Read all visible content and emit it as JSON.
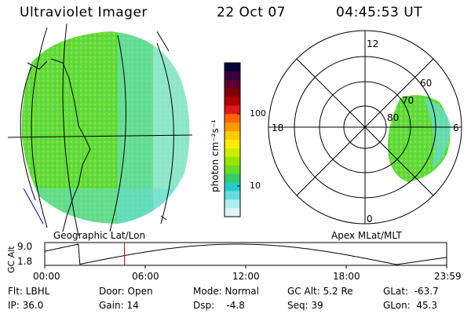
{
  "header": {
    "instrument": "Ultraviolet Imager",
    "date": "22 Oct 07",
    "time": "04:45:53 UT"
  },
  "colorbar": {
    "unit_label": "photon cm⁻²s⁻¹",
    "ticks": [
      "100",
      "10"
    ],
    "colors": [
      "#000033",
      "#3a0040",
      "#5a0030",
      "#800000",
      "#b00000",
      "#e01818",
      "#ff6600",
      "#ff9900",
      "#ffcc00",
      "#ffee00",
      "#ccee00",
      "#99e600",
      "#66dd22",
      "#33cc66",
      "#22cccc",
      "#66dddd",
      "#aaeeee",
      "#ddf5f5"
    ]
  },
  "left_panel": {
    "label": "Geographic Lat/Lon"
  },
  "right_panel": {
    "label": "Apex MLat/MLT",
    "mlt_labels": {
      "top": "12",
      "left": "18",
      "right": "6",
      "bottom": "0"
    },
    "mlat_labels": [
      "60",
      "70",
      "80"
    ]
  },
  "altitude_plot": {
    "ylabel": "GC Alt",
    "yticks": [
      "9.0",
      "1.8"
    ],
    "xticks": [
      "00:00",
      "06:00",
      "12:00",
      "18:00",
      "23:59"
    ],
    "current_time_hours": 4.76,
    "marker_color": "#cc0000",
    "orbit_perigee_hours": [
      2.0,
      21.0
    ],
    "orbit_apogee_hours": 11.5
  },
  "info": {
    "flt": "Flt: LBHL",
    "ip": "IP: 36.0",
    "door": "Door: Open",
    "gain": "Gain: 14",
    "mode": "Mode: Normal",
    "dsp": "Dsp:    -4.8",
    "gc_alt": "GC Alt: 5.2 Re",
    "seq": "Seq: 39",
    "glat": "GLat:  -63.7",
    "glon": "GLon:  45.3"
  }
}
